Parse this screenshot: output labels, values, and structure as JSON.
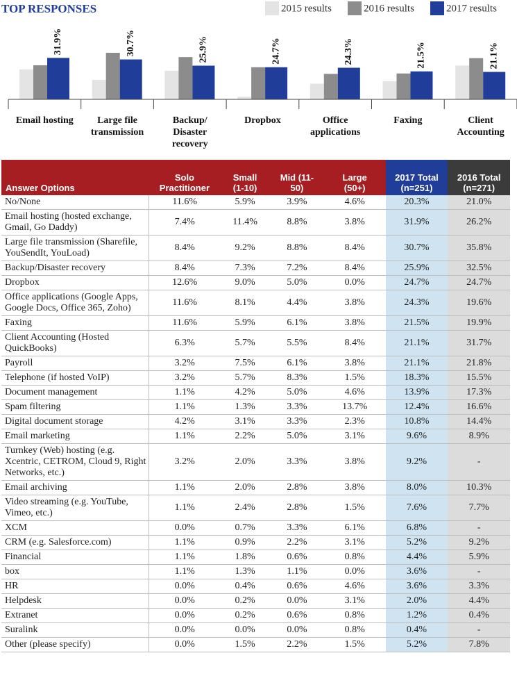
{
  "chart_data": {
    "type": "bar",
    "title": "TOP RESPONSES",
    "categories": [
      "Email hosting",
      "Large file transmission",
      "Backup/ Disaster recovery",
      "Dropbox",
      "Office applications",
      "Faxing",
      "Client Accounting"
    ],
    "series": [
      {
        "name": "2015 results",
        "color": "#e4e4e4",
        "values": [
          23,
          15,
          22,
          2,
          12,
          14,
          26
        ]
      },
      {
        "name": "2016 results",
        "color": "#8c8c8c",
        "values": [
          26.2,
          35.8,
          32.5,
          24.7,
          19.6,
          19.9,
          31.7
        ]
      },
      {
        "name": "2017 results",
        "color": "#1f3d99",
        "values": [
          31.9,
          30.7,
          25.9,
          24.7,
          24.3,
          21.5,
          21.1
        ],
        "value_labels": [
          "31.9%",
          "30.7%",
          "25.9%",
          "24.7%",
          "24.3%",
          "21.5%",
          "21.1%"
        ]
      }
    ],
    "legend": "top-right"
  },
  "table": {
    "header": [
      "Answer Options",
      "Solo Practitioner",
      "Small (1-10)",
      "Mid (11-50)",
      "Large (50+)",
      "2017 Total (n=251)",
      "2016 Total (n=271)"
    ],
    "rows": [
      [
        "No/None",
        "11.6%",
        "5.9%",
        "3.9%",
        "4.6%",
        "20.3%",
        "21.0%"
      ],
      [
        "Email hosting (hosted exchange, Gmail, Go Daddy)",
        "7.4%",
        "11.4%",
        "8.8%",
        "3.8%",
        "31.9%",
        "26.2%"
      ],
      [
        "Large file transmission (Sharefile, YouSendIt, YouLoad)",
        "8.4%",
        "9.2%",
        "8.8%",
        "8.4%",
        "30.7%",
        "35.8%"
      ],
      [
        "Backup/Disaster recovery",
        "8.4%",
        "7.3%",
        "7.2%",
        "8.4%",
        "25.9%",
        "32.5%"
      ],
      [
        "Dropbox",
        "12.6%",
        "9.0%",
        "5.0%",
        "0.0%",
        "24.7%",
        "24.7%"
      ],
      [
        "Office applications (Google Apps, Google Docs, Office 365, Zoho)",
        "11.6%",
        "8.1%",
        "4.4%",
        "3.8%",
        "24.3%",
        "19.6%"
      ],
      [
        "Faxing",
        "11.6%",
        "5.9%",
        "6.1%",
        "3.8%",
        "21.5%",
        "19.9%"
      ],
      [
        "Client Accounting (Hosted QuickBooks)",
        "6.3%",
        "5.7%",
        "5.5%",
        "8.4%",
        "21.1%",
        "31.7%"
      ],
      [
        "Payroll",
        "3.2%",
        "7.5%",
        "6.1%",
        "3.8%",
        "21.1%",
        "21.8%"
      ],
      [
        "Telephone (if hosted VoIP)",
        "3.2%",
        "5.7%",
        "8.3%",
        "1.5%",
        "18.3%",
        "15.5%"
      ],
      [
        "Document management",
        "1.1%",
        "4.2%",
        "5.0%",
        "4.6%",
        "13.9%",
        "17.3%"
      ],
      [
        "Spam filtering",
        "1.1%",
        "1.3%",
        "3.3%",
        "13.7%",
        "12.4%",
        "16.6%"
      ],
      [
        "Digital document storage",
        "4.2%",
        "3.1%",
        "3.3%",
        "2.3%",
        "10.8%",
        "14.4%"
      ],
      [
        "Email marketing",
        "1.1%",
        "2.2%",
        "5.0%",
        "3.1%",
        "9.6%",
        "8.9%"
      ],
      [
        "Turnkey (Web) hosting (e.g. Xcentric, CETROM, Cloud 9, Right Networks, etc.)",
        "3.2%",
        "2.0%",
        "3.3%",
        "3.8%",
        "9.2%",
        "-"
      ],
      [
        "Email archiving",
        "1.1%",
        "2.0%",
        "2.8%",
        "3.8%",
        "8.0%",
        "10.3%"
      ],
      [
        "Video streaming (e.g. YouTube, Vimeo, etc.)",
        "1.1%",
        "2.4%",
        "2.8%",
        "1.5%",
        "7.6%",
        "7.7%"
      ],
      [
        "XCM",
        "0.0%",
        "0.7%",
        "3.3%",
        "6.1%",
        "6.8%",
        "-"
      ],
      [
        "CRM (e.g. Salesforce.com)",
        "1.1%",
        "0.9%",
        "2.2%",
        "3.1%",
        "5.2%",
        "9.2%"
      ],
      [
        "Financial",
        "1.1%",
        "1.8%",
        "0.6%",
        "0.8%",
        "4.4%",
        "5.9%"
      ],
      [
        "box",
        "1.1%",
        "1.3%",
        "1.1%",
        "0.0%",
        "3.6%",
        "-"
      ],
      [
        "HR",
        "0.0%",
        "0.4%",
        "0.6%",
        "4.6%",
        "3.6%",
        "3.3%"
      ],
      [
        "Helpdesk",
        "0.0%",
        "0.2%",
        "0.0%",
        "3.1%",
        "2.0%",
        "4.4%"
      ],
      [
        "Extranet",
        "0.0%",
        "0.2%",
        "0.6%",
        "0.8%",
        "1.2%",
        "0.4%"
      ],
      [
        "Suralink",
        "0.0%",
        "0.0%",
        "0.0%",
        "0.8%",
        "0.4%",
        "-"
      ],
      [
        "Other (please specify)",
        "0.0%",
        "1.5%",
        "2.2%",
        "1.5%",
        "5.2%",
        "7.8%"
      ]
    ]
  }
}
